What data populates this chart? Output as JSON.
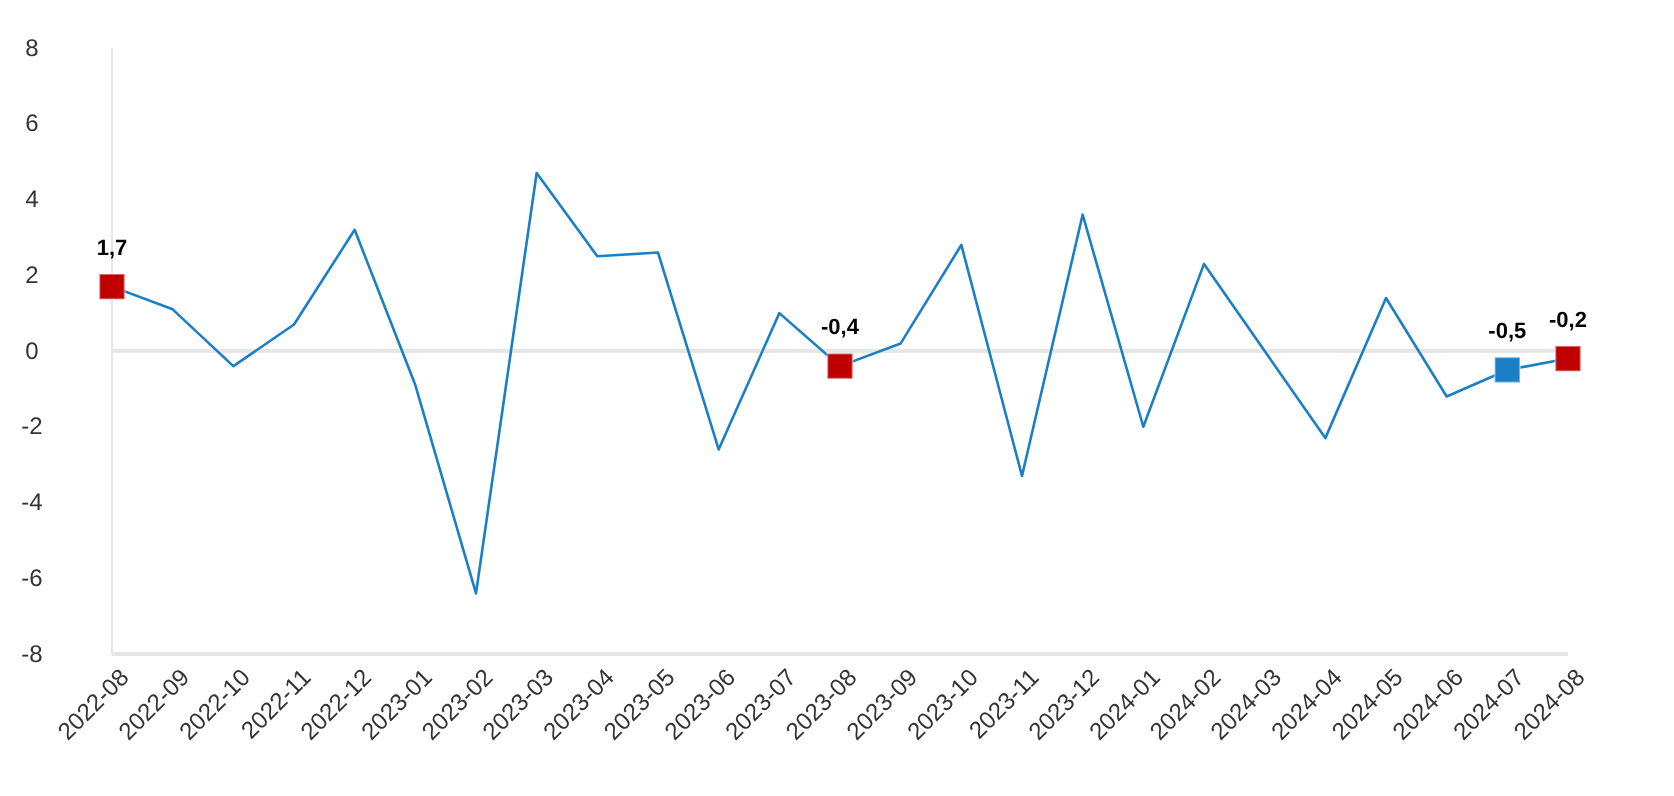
{
  "chart_data": {
    "type": "line",
    "categories": [
      "2022-08",
      "2022-09",
      "2022-10",
      "2022-11",
      "2022-12",
      "2023-01",
      "2023-02",
      "2023-03",
      "2023-04",
      "2023-05",
      "2023-06",
      "2023-07",
      "2023-08",
      "2023-09",
      "2023-10",
      "2023-11",
      "2023-12",
      "2024-01",
      "2024-02",
      "2024-03",
      "2024-04",
      "2024-05",
      "2024-06",
      "2024-07",
      "2024-08"
    ],
    "series": [
      {
        "color": "#1a7fc4",
        "marker": "none",
        "values": [
          1.7,
          1.1,
          -0.4,
          0.7,
          3.2,
          -0.9,
          -6.4,
          4.7,
          2.5,
          2.6,
          -2.6,
          1.0,
          -0.4,
          0.2,
          2.8,
          -3.3,
          3.6,
          -2.0,
          2.3,
          0.0,
          -2.3,
          1.4,
          -1.2,
          -0.5,
          -0.2
        ]
      },
      {
        "type": "scatter",
        "marker": "square",
        "values": [
          1.7,
          null,
          null,
          null,
          null,
          null,
          null,
          null,
          null,
          null,
          null,
          null,
          -0.4,
          null,
          null,
          null,
          null,
          null,
          null,
          null,
          null,
          null,
          null,
          -0.5,
          -0.2
        ],
        "colors": [
          "#c00000",
          null,
          null,
          null,
          null,
          null,
          null,
          null,
          null,
          null,
          null,
          null,
          "#c00000",
          null,
          null,
          null,
          null,
          null,
          null,
          null,
          null,
          null,
          null,
          "#1a7fc4",
          "#c00000"
        ],
        "value_labels": [
          "1,7",
          null,
          null,
          null,
          null,
          null,
          null,
          null,
          null,
          null,
          null,
          null,
          "-0,4",
          null,
          null,
          null,
          null,
          null,
          null,
          null,
          null,
          null,
          null,
          "-0,5",
          "-0,2"
        ]
      }
    ],
    "ylim": [
      -8,
      8
    ],
    "yticks": [
      -8,
      -6,
      -4,
      -2,
      0,
      2,
      4,
      6,
      8
    ],
    "ref_lines": [
      {
        "axis": "y",
        "value": 0,
        "color": "#e6e6e6"
      }
    ],
    "grid": false
  }
}
